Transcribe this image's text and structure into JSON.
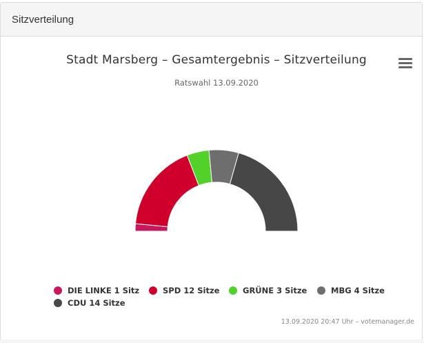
{
  "panel": {
    "heading": "Sitzverteilung"
  },
  "chart_data": {
    "type": "pie",
    "variant": "semi-donut",
    "title": "Stadt Marsberg – Gesamtergebnis – Sitzverteilung",
    "subtitle": "Ratswahl 13.09.2020",
    "categories": [
      "DIE LINKE",
      "SPD",
      "GRÜNE",
      "MBG",
      "CDU"
    ],
    "values": [
      1,
      12,
      3,
      4,
      14
    ],
    "legend_labels": [
      "DIE LINKE 1 Sitz",
      "SPD 12 Sitze",
      "GRÜNE 3 Sitze",
      "MBG 4 Sitze",
      "CDU 14 Sitze"
    ],
    "colors": [
      "#c8175d",
      "#d0002d",
      "#52d12a",
      "#6e6e6e",
      "#474747"
    ],
    "legend_position": "bottom",
    "credits": "13.09.2020 20:47 Uhr – votemanager.de"
  },
  "icons": {
    "menu": "hamburger-menu-icon"
  }
}
